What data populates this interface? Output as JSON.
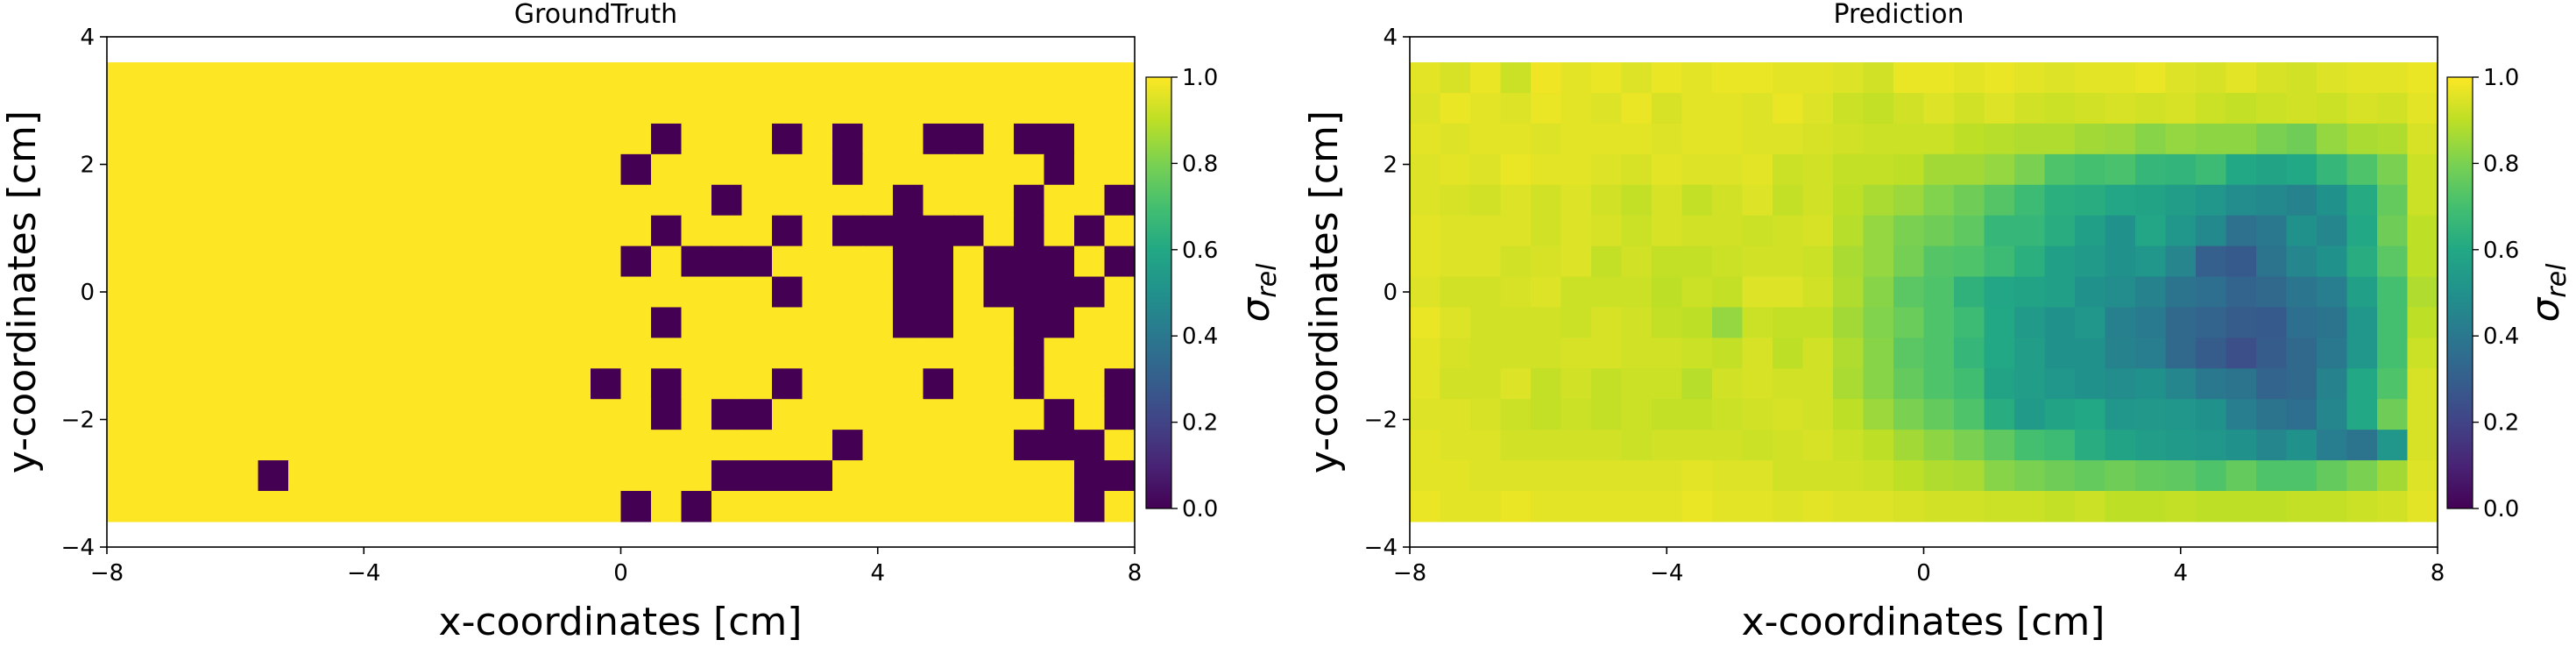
{
  "chart_data": [
    {
      "type": "heatmap",
      "title": "GroundTruth",
      "xlabel": "x-coordinates [cm]",
      "ylabel": "y-coordinates [cm]",
      "xlim": [
        -8,
        8
      ],
      "ylim": [
        -4,
        4
      ],
      "extent": [
        -8,
        8,
        -3.6,
        3.6
      ],
      "xticks": [
        "−8",
        "−4",
        "0",
        "4",
        "8"
      ],
      "yticks": [
        "−4",
        "−2",
        "0",
        "2",
        "4"
      ],
      "colorbar": {
        "label": "σ",
        "label_sub": "rel",
        "range": [
          0,
          1
        ],
        "ticks": [
          "0.0",
          "0.2",
          "0.4",
          "0.6",
          "0.8",
          "1.0"
        ],
        "colormap": "viridis"
      },
      "grid_shape": [
        15,
        34
      ],
      "values": [
        [
          1,
          1,
          1,
          1,
          1,
          1,
          1,
          1,
          1,
          1,
          1,
          1,
          1,
          1,
          1,
          1,
          1,
          1,
          1,
          1,
          1,
          1,
          1,
          1,
          1,
          1,
          1,
          1,
          1,
          1,
          1,
          1,
          1,
          1
        ],
        [
          1,
          1,
          1,
          1,
          1,
          1,
          1,
          1,
          1,
          1,
          1,
          1,
          1,
          1,
          1,
          1,
          1,
          1,
          1,
          1,
          1,
          1,
          1,
          1,
          1,
          1,
          1,
          1,
          1,
          1,
          1,
          1,
          1,
          1
        ],
        [
          1,
          1,
          1,
          1,
          1,
          1,
          1,
          1,
          1,
          1,
          1,
          1,
          1,
          1,
          1,
          1,
          1,
          1,
          0,
          1,
          1,
          1,
          0,
          1,
          0,
          1,
          1,
          0,
          0,
          1,
          0,
          0,
          1,
          1
        ],
        [
          1,
          1,
          1,
          1,
          1,
          1,
          1,
          1,
          1,
          1,
          1,
          1,
          1,
          1,
          1,
          1,
          1,
          0,
          1,
          1,
          1,
          1,
          1,
          1,
          0,
          1,
          1,
          1,
          1,
          1,
          1,
          0,
          1,
          1
        ],
        [
          1,
          1,
          1,
          1,
          1,
          1,
          1,
          1,
          1,
          1,
          1,
          1,
          1,
          1,
          1,
          1,
          1,
          1,
          1,
          1,
          0,
          1,
          1,
          1,
          1,
          1,
          0,
          1,
          1,
          1,
          0,
          1,
          1,
          0
        ],
        [
          1,
          1,
          1,
          1,
          1,
          1,
          1,
          1,
          1,
          1,
          1,
          1,
          1,
          1,
          1,
          1,
          1,
          1,
          0,
          1,
          1,
          1,
          0,
          1,
          0,
          0,
          0,
          0,
          0,
          1,
          0,
          1,
          0,
          1
        ],
        [
          1,
          1,
          1,
          1,
          1,
          1,
          1,
          1,
          1,
          1,
          1,
          1,
          1,
          1,
          1,
          1,
          1,
          0,
          1,
          0,
          0,
          0,
          1,
          1,
          1,
          1,
          0,
          0,
          1,
          0,
          0,
          0,
          1,
          0
        ],
        [
          1,
          1,
          1,
          1,
          1,
          1,
          1,
          1,
          1,
          1,
          1,
          1,
          1,
          1,
          1,
          1,
          1,
          1,
          1,
          1,
          1,
          1,
          0,
          1,
          1,
          1,
          0,
          0,
          1,
          0,
          0,
          0,
          0,
          1
        ],
        [
          1,
          1,
          1,
          1,
          1,
          1,
          1,
          1,
          1,
          1,
          1,
          1,
          1,
          1,
          1,
          1,
          1,
          1,
          0,
          1,
          1,
          1,
          1,
          1,
          1,
          1,
          0,
          0,
          1,
          1,
          0,
          0,
          1,
          1
        ],
        [
          1,
          1,
          1,
          1,
          1,
          1,
          1,
          1,
          1,
          1,
          1,
          1,
          1,
          1,
          1,
          1,
          1,
          1,
          1,
          1,
          1,
          1,
          1,
          1,
          1,
          1,
          1,
          1,
          1,
          1,
          0,
          1,
          1,
          1
        ],
        [
          1,
          1,
          1,
          1,
          1,
          1,
          1,
          1,
          1,
          1,
          1,
          1,
          1,
          1,
          1,
          1,
          0,
          1,
          0,
          1,
          1,
          1,
          0,
          1,
          1,
          1,
          1,
          0,
          1,
          1,
          0,
          1,
          1,
          0
        ],
        [
          1,
          1,
          1,
          1,
          1,
          1,
          1,
          1,
          1,
          1,
          1,
          1,
          1,
          1,
          1,
          1,
          1,
          1,
          0,
          1,
          0,
          0,
          1,
          1,
          1,
          1,
          1,
          1,
          1,
          1,
          1,
          0,
          1,
          0
        ],
        [
          1,
          1,
          1,
          1,
          1,
          1,
          1,
          1,
          1,
          1,
          1,
          1,
          1,
          1,
          1,
          1,
          1,
          1,
          1,
          1,
          1,
          1,
          1,
          1,
          0,
          1,
          1,
          1,
          1,
          1,
          0,
          0,
          0,
          1
        ],
        [
          1,
          1,
          1,
          1,
          1,
          0,
          1,
          1,
          1,
          1,
          1,
          1,
          1,
          1,
          1,
          1,
          1,
          1,
          1,
          1,
          0,
          0,
          0,
          0,
          1,
          1,
          1,
          1,
          1,
          1,
          1,
          1,
          0,
          0
        ],
        [
          1,
          1,
          1,
          1,
          1,
          1,
          1,
          1,
          1,
          1,
          1,
          1,
          1,
          1,
          1,
          1,
          1,
          0,
          1,
          0,
          1,
          1,
          1,
          1,
          1,
          1,
          1,
          1,
          1,
          1,
          1,
          1,
          0,
          1
        ]
      ]
    },
    {
      "type": "heatmap",
      "title": "Prediction",
      "xlabel": "x-coordinates [cm]",
      "ylabel": "y-coordinates [cm]",
      "xlim": [
        -8,
        8
      ],
      "ylim": [
        -4,
        4
      ],
      "extent": [
        -8,
        8,
        -3.6,
        3.6
      ],
      "xticks": [
        "−8",
        "−4",
        "0",
        "4",
        "8"
      ],
      "yticks": [
        "−4",
        "−2",
        "0",
        "2",
        "4"
      ],
      "colorbar": {
        "label": "σ",
        "label_sub": "rel",
        "range": [
          0,
          1
        ],
        "ticks": [
          "0.0",
          "0.2",
          "0.4",
          "0.6",
          "0.8",
          "1.0"
        ],
        "colormap": "viridis"
      },
      "grid_shape": [
        15,
        34
      ],
      "values": [
        [
          0.96,
          0.94,
          0.97,
          0.92,
          0.98,
          0.96,
          0.97,
          0.95,
          0.97,
          0.96,
          0.97,
          0.97,
          0.96,
          0.96,
          0.95,
          0.93,
          0.97,
          0.97,
          0.96,
          0.97,
          0.96,
          0.95,
          0.96,
          0.96,
          0.97,
          0.95,
          0.94,
          0.96,
          0.94,
          0.93,
          0.95,
          0.96,
          0.96,
          0.97
        ],
        [
          0.95,
          0.97,
          0.96,
          0.95,
          0.97,
          0.96,
          0.95,
          0.97,
          0.94,
          0.96,
          0.96,
          0.95,
          0.97,
          0.95,
          0.92,
          0.91,
          0.93,
          0.95,
          0.93,
          0.95,
          0.93,
          0.92,
          0.93,
          0.94,
          0.93,
          0.94,
          0.92,
          0.91,
          0.92,
          0.93,
          0.92,
          0.94,
          0.93,
          0.96
        ],
        [
          0.96,
          0.95,
          0.96,
          0.96,
          0.95,
          0.96,
          0.96,
          0.96,
          0.95,
          0.96,
          0.96,
          0.95,
          0.95,
          0.94,
          0.93,
          0.92,
          0.92,
          0.92,
          0.9,
          0.89,
          0.88,
          0.88,
          0.86,
          0.85,
          0.82,
          0.84,
          0.83,
          0.83,
          0.8,
          0.78,
          0.84,
          0.87,
          0.88,
          0.94
        ],
        [
          0.95,
          0.96,
          0.95,
          0.97,
          0.96,
          0.96,
          0.95,
          0.94,
          0.96,
          0.95,
          0.95,
          0.96,
          0.92,
          0.93,
          0.91,
          0.91,
          0.9,
          0.86,
          0.86,
          0.84,
          0.8,
          0.72,
          0.7,
          0.71,
          0.66,
          0.65,
          0.68,
          0.6,
          0.58,
          0.6,
          0.66,
          0.72,
          0.8,
          0.92
        ],
        [
          0.95,
          0.94,
          0.93,
          0.95,
          0.93,
          0.95,
          0.93,
          0.91,
          0.94,
          0.91,
          0.93,
          0.95,
          0.91,
          0.93,
          0.9,
          0.87,
          0.85,
          0.81,
          0.78,
          0.73,
          0.68,
          0.63,
          0.62,
          0.59,
          0.58,
          0.55,
          0.52,
          0.48,
          0.47,
          0.44,
          0.5,
          0.61,
          0.76,
          0.92
        ],
        [
          0.96,
          0.95,
          0.95,
          0.95,
          0.93,
          0.95,
          0.94,
          0.92,
          0.94,
          0.93,
          0.93,
          0.92,
          0.93,
          0.94,
          0.89,
          0.84,
          0.8,
          0.78,
          0.75,
          0.66,
          0.66,
          0.62,
          0.56,
          0.5,
          0.59,
          0.52,
          0.47,
          0.37,
          0.4,
          0.5,
          0.46,
          0.6,
          0.78,
          0.9
        ],
        [
          0.96,
          0.95,
          0.95,
          0.93,
          0.94,
          0.95,
          0.91,
          0.93,
          0.91,
          0.91,
          0.92,
          0.93,
          0.93,
          0.92,
          0.87,
          0.84,
          0.79,
          0.73,
          0.72,
          0.68,
          0.63,
          0.56,
          0.54,
          0.5,
          0.52,
          0.45,
          0.3,
          0.28,
          0.38,
          0.46,
          0.5,
          0.62,
          0.74,
          0.9
        ],
        [
          0.95,
          0.93,
          0.93,
          0.94,
          0.95,
          0.92,
          0.92,
          0.92,
          0.9,
          0.92,
          0.91,
          0.95,
          0.95,
          0.93,
          0.88,
          0.82,
          0.74,
          0.72,
          0.64,
          0.59,
          0.58,
          0.56,
          0.5,
          0.48,
          0.44,
          0.38,
          0.36,
          0.32,
          0.34,
          0.39,
          0.42,
          0.56,
          0.7,
          0.88
        ],
        [
          0.97,
          0.95,
          0.93,
          0.93,
          0.93,
          0.92,
          0.94,
          0.93,
          0.91,
          0.9,
          0.84,
          0.92,
          0.91,
          0.91,
          0.86,
          0.81,
          0.77,
          0.72,
          0.68,
          0.6,
          0.54,
          0.5,
          0.52,
          0.43,
          0.41,
          0.34,
          0.32,
          0.29,
          0.28,
          0.36,
          0.38,
          0.52,
          0.7,
          0.9
        ],
        [
          0.96,
          0.94,
          0.93,
          0.93,
          0.93,
          0.94,
          0.94,
          0.93,
          0.93,
          0.92,
          0.91,
          0.94,
          0.9,
          0.93,
          0.88,
          0.82,
          0.74,
          0.72,
          0.66,
          0.6,
          0.55,
          0.5,
          0.5,
          0.44,
          0.42,
          0.34,
          0.29,
          0.24,
          0.29,
          0.34,
          0.4,
          0.52,
          0.7,
          0.92
        ],
        [
          0.96,
          0.93,
          0.93,
          0.95,
          0.91,
          0.93,
          0.91,
          0.92,
          0.92,
          0.89,
          0.93,
          0.94,
          0.93,
          0.93,
          0.87,
          0.82,
          0.76,
          0.72,
          0.69,
          0.58,
          0.55,
          0.52,
          0.5,
          0.48,
          0.5,
          0.46,
          0.4,
          0.38,
          0.32,
          0.34,
          0.44,
          0.6,
          0.72,
          0.94
        ],
        [
          0.95,
          0.95,
          0.94,
          0.92,
          0.91,
          0.92,
          0.91,
          0.92,
          0.91,
          0.91,
          0.92,
          0.93,
          0.94,
          0.93,
          0.9,
          0.85,
          0.8,
          0.76,
          0.72,
          0.62,
          0.54,
          0.58,
          0.6,
          0.52,
          0.53,
          0.52,
          0.5,
          0.42,
          0.38,
          0.36,
          0.46,
          0.6,
          0.78,
          0.94
        ],
        [
          0.96,
          0.95,
          0.95,
          0.93,
          0.93,
          0.93,
          0.93,
          0.92,
          0.93,
          0.93,
          0.93,
          0.92,
          0.93,
          0.94,
          0.92,
          0.9,
          0.86,
          0.83,
          0.8,
          0.75,
          0.7,
          0.68,
          0.62,
          0.58,
          0.55,
          0.54,
          0.52,
          0.5,
          0.46,
          0.5,
          0.42,
          0.38,
          0.52,
          0.94
        ],
        [
          0.96,
          0.96,
          0.95,
          0.95,
          0.95,
          0.95,
          0.95,
          0.95,
          0.95,
          0.96,
          0.95,
          0.95,
          0.93,
          0.93,
          0.93,
          0.92,
          0.9,
          0.88,
          0.87,
          0.82,
          0.8,
          0.78,
          0.76,
          0.78,
          0.76,
          0.75,
          0.72,
          0.76,
          0.72,
          0.72,
          0.76,
          0.8,
          0.86,
          0.95
        ],
        [
          0.97,
          0.96,
          0.96,
          0.97,
          0.96,
          0.96,
          0.96,
          0.96,
          0.96,
          0.97,
          0.96,
          0.96,
          0.95,
          0.96,
          0.95,
          0.95,
          0.94,
          0.93,
          0.93,
          0.92,
          0.92,
          0.91,
          0.92,
          0.9,
          0.9,
          0.91,
          0.9,
          0.9,
          0.9,
          0.91,
          0.91,
          0.92,
          0.93,
          0.96
        ]
      ]
    }
  ]
}
